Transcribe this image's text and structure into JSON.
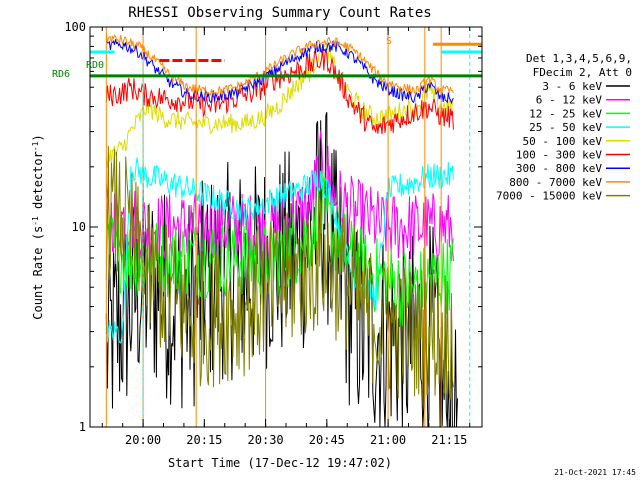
{
  "chart_data": {
    "type": "line",
    "title": "RHESSI Observing Summary Count Rates",
    "xlabel": "Start Time (17-Dec-12 19:47:02)",
    "ylabel_main": "Count Rate (s",
    "ylabel_sup1": "-1",
    "ylabel_mid": " detector",
    "ylabel_sup2": "-1",
    "ylabel_end": ")",
    "footer": "21-Oct-2021 17:45",
    "y_scale": "log",
    "ylim": [
      1,
      100
    ],
    "y_ticks": [
      {
        "value": 1,
        "label": "1"
      },
      {
        "value": 10,
        "label": "10"
      },
      {
        "value": 100,
        "label": "100"
      }
    ],
    "xlim": [
      "19:47",
      "21:23"
    ],
    "x_ticks": [
      {
        "minutes": 13,
        "label": "20:00"
      },
      {
        "minutes": 28,
        "label": "20:15"
      },
      {
        "minutes": 43,
        "label": "20:30"
      },
      {
        "minutes": 58,
        "label": "20:45"
      },
      {
        "minutes": 73,
        "label": "21:00"
      },
      {
        "minutes": 88,
        "label": "21:15"
      }
    ],
    "legend_header": [
      "Det 1,3,4,5,6,9,",
      "FDecim 2, Att 0"
    ],
    "annotations": {
      "rd0": "RD0",
      "rd6": "RD6",
      "s_marker": "S"
    },
    "series": [
      {
        "name": "3 - 6 keV",
        "color": "#000000",
        "values": [
          [
            4,
            2.5
          ],
          [
            8,
            3.5
          ],
          [
            12,
            5
          ],
          [
            16,
            5
          ],
          [
            20,
            4.5
          ],
          [
            24,
            4
          ],
          [
            28,
            5
          ],
          [
            32,
            6
          ],
          [
            36,
            6
          ],
          [
            40,
            6
          ],
          [
            44,
            7
          ],
          [
            48,
            7
          ],
          [
            52,
            8
          ],
          [
            55,
            10
          ],
          [
            57,
            14
          ],
          [
            59,
            9
          ],
          [
            61,
            6
          ],
          [
            64,
            4
          ],
          [
            67,
            3
          ],
          [
            70,
            3
          ],
          [
            74,
            3
          ],
          [
            78,
            2.5
          ],
          [
            80,
            3
          ],
          [
            84,
            3
          ],
          [
            86,
            1.5
          ],
          [
            88,
            1.2
          ],
          [
            90,
            1
          ]
        ]
      },
      {
        "name": "6 - 12 keV",
        "color": "#ff00ff",
        "values": [
          [
            4,
            11
          ],
          [
            10,
            11
          ],
          [
            14,
            10
          ],
          [
            18,
            10
          ],
          [
            22,
            10
          ],
          [
            26,
            10
          ],
          [
            30,
            10
          ],
          [
            34,
            10
          ],
          [
            38,
            10
          ],
          [
            42,
            10
          ],
          [
            46,
            10
          ],
          [
            50,
            11
          ],
          [
            54,
            13
          ],
          [
            57,
            22
          ],
          [
            58,
            19
          ],
          [
            60,
            14
          ],
          [
            64,
            12
          ],
          [
            68,
            11
          ],
          [
            72,
            10
          ],
          [
            76,
            10
          ],
          [
            80,
            10
          ],
          [
            84,
            10
          ],
          [
            89,
            10
          ]
        ]
      },
      {
        "name": "12 - 25 keV",
        "color": "#00ff00",
        "values": [
          [
            4,
            8
          ],
          [
            10,
            7
          ],
          [
            14,
            7
          ],
          [
            18,
            7
          ],
          [
            22,
            7
          ],
          [
            26,
            7
          ],
          [
            30,
            7
          ],
          [
            34,
            7
          ],
          [
            38,
            7
          ],
          [
            42,
            7
          ],
          [
            46,
            7
          ],
          [
            50,
            8
          ],
          [
            54,
            9
          ],
          [
            57,
            12
          ],
          [
            60,
            9
          ],
          [
            64,
            7
          ],
          [
            68,
            6
          ],
          [
            72,
            5.5
          ],
          [
            76,
            5
          ],
          [
            80,
            5
          ],
          [
            84,
            5.5
          ],
          [
            89,
            6
          ]
        ]
      },
      {
        "name": "25 - 50 keV",
        "color": "#00ffff",
        "values": [
          [
            4,
            3
          ],
          [
            8,
            3
          ],
          [
            10,
            20
          ],
          [
            14,
            18
          ],
          [
            18,
            17
          ],
          [
            22,
            16
          ],
          [
            26,
            15
          ],
          [
            30,
            14
          ],
          [
            34,
            13
          ],
          [
            38,
            12
          ],
          [
            42,
            13
          ],
          [
            46,
            14
          ],
          [
            50,
            15
          ],
          [
            53,
            16
          ],
          [
            56,
            18
          ],
          [
            58,
            16
          ],
          [
            60,
            12
          ],
          [
            62,
            8
          ],
          [
            64,
            6
          ],
          [
            67,
            5
          ],
          [
            70,
            4.5
          ],
          [
            73,
            15
          ],
          [
            76,
            16
          ],
          [
            80,
            17
          ],
          [
            84,
            18
          ],
          [
            89,
            18
          ]
        ]
      },
      {
        "name": "50 - 100 keV",
        "color": "#dddd00",
        "values": [
          [
            4,
            22
          ],
          [
            8,
            25
          ],
          [
            10,
            30
          ],
          [
            14,
            40
          ],
          [
            18,
            35
          ],
          [
            22,
            34
          ],
          [
            26,
            33
          ],
          [
            30,
            33
          ],
          [
            34,
            33
          ],
          [
            38,
            33
          ],
          [
            42,
            35
          ],
          [
            46,
            40
          ],
          [
            50,
            50
          ],
          [
            54,
            60
          ],
          [
            57,
            80
          ],
          [
            59,
            70
          ],
          [
            61,
            55
          ],
          [
            64,
            45
          ],
          [
            67,
            38
          ],
          [
            70,
            35
          ],
          [
            73,
            36
          ],
          [
            76,
            38
          ],
          [
            80,
            40
          ],
          [
            83,
            48
          ],
          [
            86,
            40
          ],
          [
            89,
            40
          ]
        ]
      },
      {
        "name": "100 - 300 keV",
        "color": "#ff0000",
        "values": [
          [
            4,
            45
          ],
          [
            8,
            47
          ],
          [
            10,
            50
          ],
          [
            13,
            46
          ],
          [
            18,
            44
          ],
          [
            22,
            43
          ],
          [
            26,
            42
          ],
          [
            30,
            40
          ],
          [
            33,
            42
          ],
          [
            37,
            45
          ],
          [
            41,
            48
          ],
          [
            45,
            55
          ],
          [
            50,
            60
          ],
          [
            54,
            65
          ],
          [
            58,
            70
          ],
          [
            61,
            55
          ],
          [
            64,
            42
          ],
          [
            67,
            35
          ],
          [
            70,
            30
          ],
          [
            73,
            33
          ],
          [
            76,
            35
          ],
          [
            80,
            38
          ],
          [
            83,
            40
          ],
          [
            86,
            36
          ],
          [
            89,
            35
          ]
        ]
      },
      {
        "name": "300 - 800 keV",
        "color": "#0000ff",
        "values": [
          [
            4,
            80
          ],
          [
            8,
            82
          ],
          [
            12,
            75
          ],
          [
            16,
            62
          ],
          [
            20,
            52
          ],
          [
            24,
            46
          ],
          [
            28,
            45
          ],
          [
            32,
            45
          ],
          [
            36,
            47
          ],
          [
            40,
            52
          ],
          [
            44,
            58
          ],
          [
            48,
            66
          ],
          [
            52,
            74
          ],
          [
            56,
            80
          ],
          [
            60,
            80
          ],
          [
            63,
            75
          ],
          [
            66,
            66
          ],
          [
            69,
            56
          ],
          [
            72,
            50
          ],
          [
            76,
            46
          ],
          [
            80,
            44
          ],
          [
            83,
            52
          ],
          [
            86,
            44
          ],
          [
            89,
            44
          ]
        ]
      },
      {
        "name": "800 - 7000 keV",
        "color": "#ff8800",
        "values": [
          [
            4,
            88
          ],
          [
            8,
            86
          ],
          [
            12,
            80
          ],
          [
            16,
            68
          ],
          [
            20,
            56
          ],
          [
            24,
            50
          ],
          [
            28,
            48
          ],
          [
            32,
            48
          ],
          [
            36,
            50
          ],
          [
            40,
            55
          ],
          [
            44,
            62
          ],
          [
            48,
            70
          ],
          [
            52,
            78
          ],
          [
            56,
            84
          ],
          [
            60,
            84
          ],
          [
            63,
            80
          ],
          [
            66,
            72
          ],
          [
            69,
            62
          ],
          [
            72,
            54
          ],
          [
            76,
            50
          ],
          [
            80,
            48
          ],
          [
            83,
            55
          ],
          [
            86,
            48
          ],
          [
            89,
            48
          ]
        ]
      },
      {
        "name": "7000 - 15000 keV",
        "color": "#808000",
        "values": [
          [
            4,
            12
          ],
          [
            8,
            11
          ],
          [
            10,
            9
          ],
          [
            14,
            6
          ],
          [
            18,
            5
          ],
          [
            22,
            4
          ],
          [
            26,
            3.5
          ],
          [
            30,
            3.5
          ],
          [
            34,
            3.8
          ],
          [
            38,
            4
          ],
          [
            42,
            4.5
          ],
          [
            46,
            5
          ],
          [
            50,
            5.5
          ],
          [
            54,
            6
          ],
          [
            57,
            7
          ],
          [
            60,
            6
          ],
          [
            64,
            5
          ],
          [
            67,
            4
          ],
          [
            70,
            3.5
          ],
          [
            73,
            3
          ],
          [
            76,
            3
          ],
          [
            80,
            3
          ],
          [
            84,
            3
          ],
          [
            89,
            3
          ]
        ]
      }
    ],
    "attenuator_levels": [
      {
        "name": "cyan-upper",
        "color": "#00ffff",
        "value": 75
      },
      {
        "name": "rd6-green",
        "color": "#008000",
        "value": 57
      }
    ]
  }
}
